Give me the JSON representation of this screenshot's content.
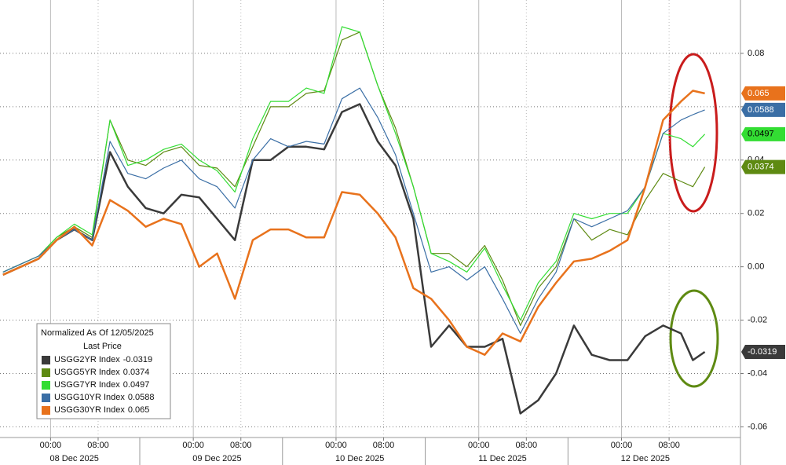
{
  "chart_data": {
    "type": "line",
    "legend_title": "Normalized As Of 12/05/2025",
    "legend_subtitle": "Last Price",
    "x": [
      -8,
      -5,
      -2,
      1,
      4,
      7,
      10,
      13,
      16,
      19,
      22,
      25,
      28,
      31,
      34,
      37,
      40,
      43,
      46,
      49,
      52,
      55,
      58,
      61,
      64,
      67,
      70,
      73,
      76,
      79,
      82,
      85,
      88,
      91,
      94,
      97,
      100,
      103,
      106,
      108,
      110
    ],
    "xlim": [
      -8.5,
      116
    ],
    "xticks": [
      {
        "value": 0,
        "label": "00:00"
      },
      {
        "value": 8,
        "label": "08:00"
      },
      {
        "value": 24,
        "label": "00:00"
      },
      {
        "value": 32,
        "label": "08:00"
      },
      {
        "value": 48,
        "label": "00:00"
      },
      {
        "value": 56,
        "label": "08:00"
      },
      {
        "value": 72,
        "label": "00:00"
      },
      {
        "value": 80,
        "label": "08:00"
      },
      {
        "value": 96,
        "label": "00:00"
      },
      {
        "value": 104,
        "label": "08:00"
      }
    ],
    "date_labels": [
      {
        "value": 4,
        "label": "08 Dec 2025"
      },
      {
        "value": 28,
        "label": "09 Dec 2025"
      },
      {
        "value": 52,
        "label": "10 Dec 2025"
      },
      {
        "value": 76,
        "label": "11 Dec 2025"
      },
      {
        "value": 100,
        "label": "12 Dec 2025"
      }
    ],
    "ylim": [
      -0.064,
      0.1
    ],
    "yticks": [
      0.08,
      0.06,
      0.04,
      0.02,
      {
        "value": 0,
        "label": "0.00"
      },
      -0.02,
      -0.04,
      -0.06
    ],
    "grid": true,
    "series": [
      {
        "name": "USGG2YR Index",
        "color": "#3a3a3a",
        "width": 2.5,
        "values": [
          -0.003,
          0.0,
          0.003,
          0.01,
          0.014,
          0.01,
          0.043,
          0.03,
          0.022,
          0.02,
          0.027,
          0.026,
          0.018,
          0.01,
          0.04,
          0.04,
          0.045,
          0.045,
          0.044,
          0.058,
          0.061,
          0.047,
          0.038,
          0.018,
          -0.03,
          -0.022,
          -0.03,
          -0.03,
          -0.027,
          -0.055,
          -0.05,
          -0.04,
          -0.022,
          -0.033,
          -0.035,
          -0.035,
          -0.026,
          -0.022,
          -0.025,
          -0.035,
          -0.0319
        ]
      },
      {
        "name": "USGG5YR Index",
        "color": "#5e8a12",
        "width": 1.2,
        "values": [
          -0.002,
          0.001,
          0.004,
          0.011,
          0.015,
          0.011,
          0.055,
          0.04,
          0.038,
          0.043,
          0.045,
          0.038,
          0.037,
          0.03,
          0.045,
          0.06,
          0.06,
          0.065,
          0.066,
          0.085,
          0.088,
          0.068,
          0.052,
          0.03,
          0.005,
          0.005,
          0.0,
          0.008,
          -0.005,
          -0.022,
          -0.008,
          0.0,
          0.018,
          0.01,
          0.014,
          0.012,
          0.025,
          0.035,
          0.032,
          0.03,
          0.0374
        ]
      },
      {
        "name": "USGG7YR Index",
        "color": "#33dd33",
        "width": 1.2,
        "values": [
          -0.002,
          0.001,
          0.004,
          0.011,
          0.016,
          0.012,
          0.055,
          0.038,
          0.04,
          0.044,
          0.046,
          0.04,
          0.036,
          0.028,
          0.048,
          0.062,
          0.062,
          0.067,
          0.065,
          0.09,
          0.088,
          0.068,
          0.05,
          0.03,
          0.005,
          0.002,
          -0.002,
          0.007,
          -0.007,
          -0.02,
          -0.006,
          0.002,
          0.02,
          0.018,
          0.02,
          0.02,
          0.03,
          0.05,
          0.048,
          0.045,
          0.0497
        ]
      },
      {
        "name": "USGG10YR Index",
        "color": "#3a6ea5",
        "width": 1.2,
        "values": [
          -0.002,
          0.001,
          0.004,
          0.01,
          0.014,
          0.01,
          0.047,
          0.035,
          0.033,
          0.037,
          0.04,
          0.033,
          0.03,
          0.022,
          0.04,
          0.048,
          0.045,
          0.047,
          0.046,
          0.063,
          0.067,
          0.056,
          0.042,
          0.02,
          -0.002,
          0.0,
          -0.005,
          0.0,
          -0.012,
          -0.025,
          -0.012,
          -0.002,
          0.018,
          0.015,
          0.018,
          0.021,
          0.03,
          0.05,
          0.055,
          0.057,
          0.0588
        ]
      },
      {
        "name": "USGG30YR Index",
        "color": "#e8721c",
        "width": 2.5,
        "values": [
          -0.003,
          0.0,
          0.003,
          0.01,
          0.015,
          0.008,
          0.025,
          0.021,
          0.015,
          0.018,
          0.016,
          0.0,
          0.005,
          -0.012,
          0.01,
          0.014,
          0.014,
          0.011,
          0.011,
          0.028,
          0.027,
          0.02,
          0.011,
          -0.008,
          -0.012,
          -0.02,
          -0.03,
          -0.033,
          -0.025,
          -0.028,
          -0.015,
          -0.006,
          0.002,
          0.003,
          0.006,
          0.01,
          0.03,
          0.055,
          0.062,
          0.066,
          0.065
        ]
      }
    ]
  }
}
